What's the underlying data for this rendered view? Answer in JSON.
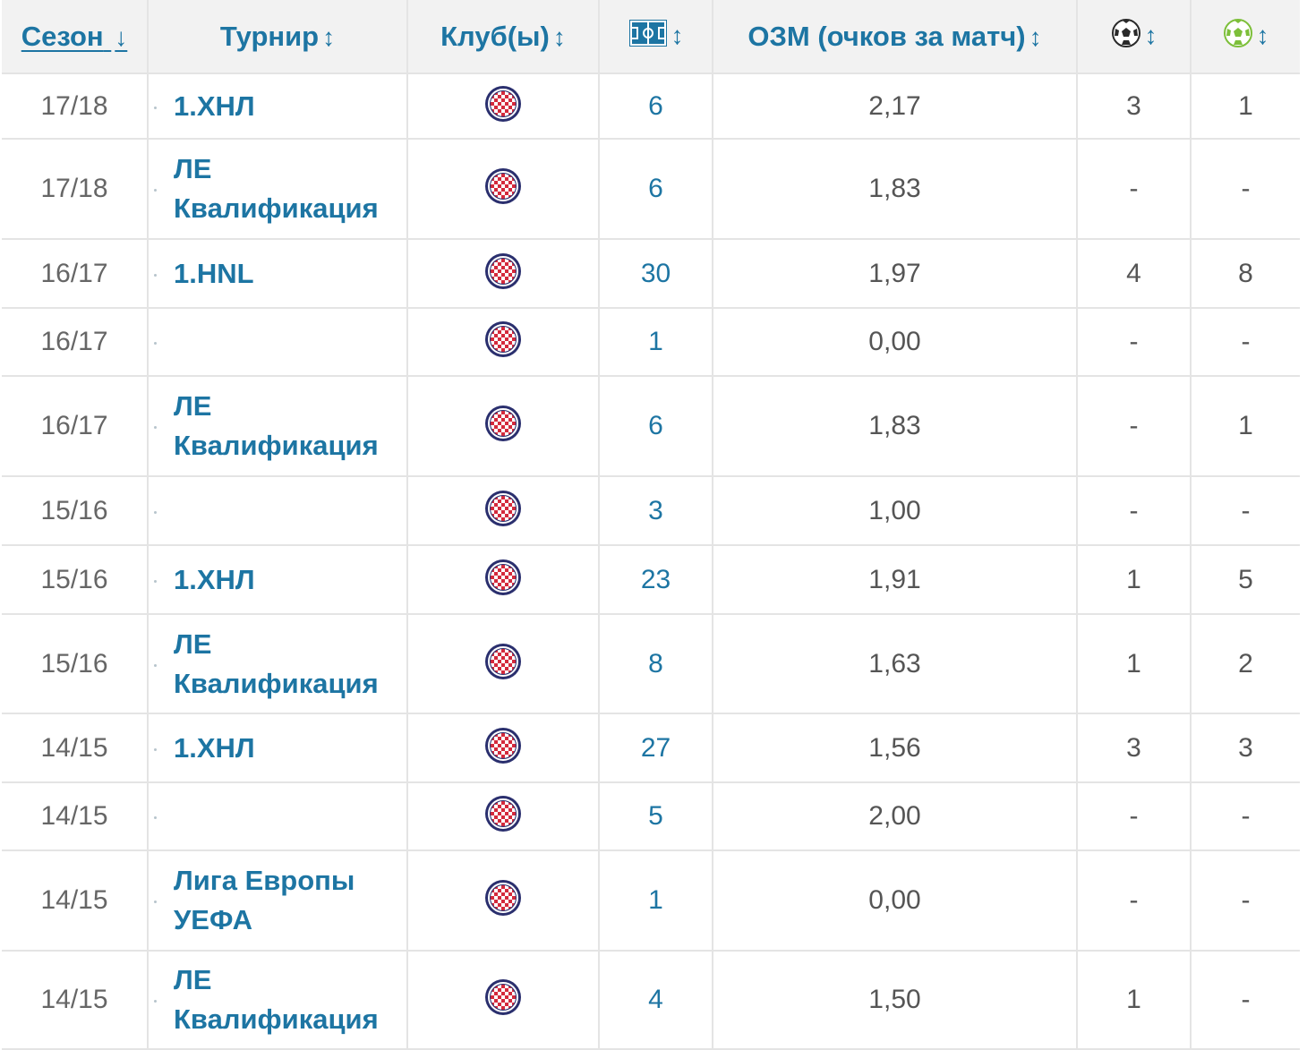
{
  "headers": {
    "season": "Сезон",
    "tournament": "Турнир",
    "clubs": "Клуб(ы)",
    "matches_icon": "pitch-icon",
    "ppg": "ОЗМ (очков за матч)",
    "goals_icon": "ball-icon",
    "assists_icon": "ball-assist-icon",
    "sort_active": "↓",
    "sort_neutral": "↕"
  },
  "colors": {
    "link": "#1d75a3",
    "text": "#555555",
    "header_bg": "#f2f2f2",
    "border": "#e4e4e4",
    "crest_blue": "#2a2f6e",
    "crest_red": "#d42a3c"
  },
  "rows": [
    {
      "season": "17/18",
      "tournament": "1.ХНЛ",
      "club_icon": "hajduk-crest",
      "matches": "6",
      "ppg": "2,17",
      "goals": "3",
      "assists": "1"
    },
    {
      "season": "17/18",
      "tournament": "ЛЕ Квалификация",
      "club_icon": "hajduk-crest",
      "matches": "6",
      "ppg": "1,83",
      "goals": "-",
      "assists": "-"
    },
    {
      "season": "16/17",
      "tournament": "1.HNL",
      "club_icon": "hajduk-crest",
      "matches": "30",
      "ppg": "1,97",
      "goals": "4",
      "assists": "8"
    },
    {
      "season": "16/17",
      "tournament": "",
      "club_icon": "hajduk-crest",
      "matches": "1",
      "ppg": "0,00",
      "goals": "-",
      "assists": "-"
    },
    {
      "season": "16/17",
      "tournament": "ЛЕ Квалификация",
      "club_icon": "hajduk-crest",
      "matches": "6",
      "ppg": "1,83",
      "goals": "-",
      "assists": "1"
    },
    {
      "season": "15/16",
      "tournament": "",
      "club_icon": "hajduk-crest",
      "matches": "3",
      "ppg": "1,00",
      "goals": "-",
      "assists": "-"
    },
    {
      "season": "15/16",
      "tournament": "1.ХНЛ",
      "club_icon": "hajduk-crest",
      "matches": "23",
      "ppg": "1,91",
      "goals": "1",
      "assists": "5"
    },
    {
      "season": "15/16",
      "tournament": "ЛЕ Квалификация",
      "club_icon": "hajduk-crest",
      "matches": "8",
      "ppg": "1,63",
      "goals": "1",
      "assists": "2"
    },
    {
      "season": "14/15",
      "tournament": "1.ХНЛ",
      "club_icon": "hajduk-crest",
      "matches": "27",
      "ppg": "1,56",
      "goals": "3",
      "assists": "3"
    },
    {
      "season": "14/15",
      "tournament": "",
      "club_icon": "hajduk-crest",
      "matches": "5",
      "ppg": "2,00",
      "goals": "-",
      "assists": "-"
    },
    {
      "season": "14/15",
      "tournament": "Лига Европы УЕФА",
      "club_icon": "hajduk-crest",
      "matches": "1",
      "ppg": "0,00",
      "goals": "-",
      "assists": "-"
    },
    {
      "season": "14/15",
      "tournament": "ЛЕ Квалификация",
      "club_icon": "hajduk-crest",
      "matches": "4",
      "ppg": "1,50",
      "goals": "1",
      "assists": "-"
    }
  ]
}
